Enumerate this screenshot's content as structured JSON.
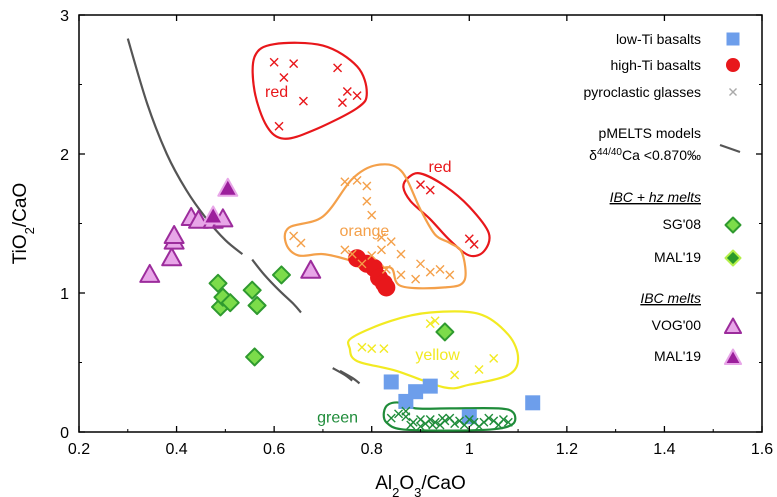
{
  "chart_data": {
    "type": "scatter",
    "xlabel_parts": [
      "Al",
      "2",
      "O",
      "3",
      "/CaO"
    ],
    "ylabel_parts": [
      "TiO",
      "2",
      "/CaO"
    ],
    "xlim": [
      0.2,
      1.6
    ],
    "ylim": [
      0,
      3
    ],
    "xticks": [
      "0.2",
      "0.4",
      "0.6",
      "0.8",
      "1",
      "1.2",
      "1.4",
      "1.6"
    ],
    "yticks": [
      "0",
      "1",
      "2",
      "3"
    ],
    "colors": {
      "low_ti": "#6d9eeb",
      "high_ti": "#e8171b",
      "glass_red": "#e8171b",
      "glass_orange": "#f4a04a",
      "glass_yellow": "#f2ea22",
      "glass_green": "#1f8c3a",
      "pmelts": "#555555",
      "sg08_fill": "#7cdc4a",
      "sg08_edge": "#2f9a2f",
      "mal19_hz_fill": "#2a9a2a",
      "mal19_hz_edge": "#b4f04a",
      "vog00_fill": "#e8a6e8",
      "vog00_edge": "#9c2c9c",
      "mal19_ibc_fill": "#9c1f9c",
      "mal19_ibc_edge": "#e8a6e8"
    },
    "series": [
      {
        "name": "low-Ti basalts",
        "marker": "square",
        "color": "#6d9eeb",
        "points": [
          [
            0.84,
            0.36
          ],
          [
            0.87,
            0.22
          ],
          [
            0.89,
            0.29
          ],
          [
            0.92,
            0.33
          ],
          [
            1.0,
            0.11
          ],
          [
            1.13,
            0.21
          ]
        ]
      },
      {
        "name": "high-Ti basalts",
        "marker": "circle",
        "color": "#e8171b",
        "points": [
          [
            0.77,
            1.25
          ],
          [
            0.79,
            1.21
          ],
          [
            0.805,
            1.18
          ],
          [
            0.815,
            1.11
          ],
          [
            0.825,
            1.07
          ],
          [
            0.83,
            1.04
          ]
        ]
      },
      {
        "name": "pyroclastic glasses",
        "marker": "x",
        "group": "red",
        "points": [
          [
            0.6,
            2.66
          ],
          [
            0.61,
            2.2
          ],
          [
            0.64,
            2.65
          ],
          [
            0.66,
            2.38
          ],
          [
            0.62,
            2.55
          ],
          [
            0.73,
            2.62
          ],
          [
            0.74,
            2.37
          ],
          [
            0.75,
            2.45
          ],
          [
            0.77,
            2.42
          ],
          [
            0.9,
            1.78
          ],
          [
            0.92,
            1.74
          ],
          [
            1.0,
            1.39
          ],
          [
            1.01,
            1.35
          ]
        ]
      },
      {
        "name": "pyroclastic glasses",
        "marker": "x",
        "group": "orange",
        "points": [
          [
            0.64,
            1.41
          ],
          [
            0.655,
            1.36
          ],
          [
            0.745,
            1.31
          ],
          [
            0.76,
            1.28
          ],
          [
            0.78,
            1.21
          ],
          [
            0.8,
            1.27
          ],
          [
            0.82,
            1.31
          ],
          [
            0.86,
            1.28
          ],
          [
            0.745,
            1.8
          ],
          [
            0.77,
            1.81
          ],
          [
            0.79,
            1.77
          ],
          [
            0.79,
            1.66
          ],
          [
            0.8,
            1.56
          ],
          [
            0.82,
            1.4
          ],
          [
            0.84,
            1.37
          ],
          [
            0.83,
            1.17
          ],
          [
            0.86,
            1.13
          ],
          [
            0.9,
            1.21
          ],
          [
            0.89,
            1.1
          ],
          [
            0.92,
            1.15
          ],
          [
            0.94,
            1.17
          ],
          [
            0.96,
            1.13
          ]
        ]
      },
      {
        "name": "pyroclastic glasses",
        "marker": "x",
        "group": "yellow",
        "points": [
          [
            0.78,
            0.61
          ],
          [
            0.8,
            0.6
          ],
          [
            0.825,
            0.6
          ],
          [
            0.92,
            0.78
          ],
          [
            0.93,
            0.8
          ],
          [
            0.97,
            0.41
          ],
          [
            1.02,
            0.45
          ],
          [
            1.05,
            0.53
          ]
        ]
      },
      {
        "name": "pyroclastic glasses",
        "marker": "x",
        "group": "green",
        "points": [
          [
            0.84,
            0.1
          ],
          [
            0.855,
            0.13
          ],
          [
            0.87,
            0.11
          ],
          [
            0.885,
            0.07
          ],
          [
            0.9,
            0.04
          ],
          [
            0.91,
            0.06
          ],
          [
            0.92,
            0.09
          ],
          [
            0.93,
            0.07
          ],
          [
            0.94,
            0.05
          ],
          [
            0.95,
            0.08
          ],
          [
            0.96,
            0.1
          ],
          [
            0.97,
            0.06
          ],
          [
            0.98,
            0.08
          ],
          [
            0.99,
            0.05
          ],
          [
            1.0,
            0.09
          ],
          [
            1.01,
            0.07
          ],
          [
            1.02,
            0.04
          ],
          [
            1.03,
            0.07
          ],
          [
            1.04,
            0.1
          ],
          [
            1.05,
            0.08
          ],
          [
            1.06,
            0.05
          ],
          [
            1.07,
            0.09
          ],
          [
            1.08,
            0.07
          ],
          [
            0.9,
            0.09
          ],
          [
            0.925,
            0.05
          ],
          [
            0.945,
            0.1
          ],
          [
            0.88,
            0.05
          ],
          [
            0.87,
            0.15
          ]
        ]
      },
      {
        "name": "SG'08",
        "marker": "diamond",
        "points": [
          [
            0.485,
            1.07
          ],
          [
            0.49,
            0.9
          ],
          [
            0.495,
            0.97
          ],
          [
            0.51,
            0.93
          ],
          [
            0.555,
            1.02
          ],
          [
            0.565,
            0.91
          ],
          [
            0.56,
            0.54
          ],
          [
            0.615,
            1.13
          ],
          [
            0.95,
            0.72
          ]
        ]
      },
      {
        "name": "VOG'00",
        "marker": "triangle",
        "points": [
          [
            0.345,
            1.13
          ],
          [
            0.39,
            1.25
          ],
          [
            0.395,
            1.37
          ],
          [
            0.395,
            1.41
          ],
          [
            0.43,
            1.54
          ],
          [
            0.445,
            1.52
          ],
          [
            0.475,
            1.52
          ],
          [
            0.495,
            1.53
          ],
          [
            0.675,
            1.16
          ]
        ]
      },
      {
        "name": "MAL'19",
        "marker": "triangle-dark",
        "points": [
          [
            0.475,
            1.55
          ],
          [
            0.505,
            1.75
          ]
        ]
      }
    ],
    "pmelts_curves": [
      [
        [
          0.3,
          2.83
        ],
        [
          0.33,
          2.43
        ],
        [
          0.37,
          2.09
        ],
        [
          0.41,
          1.81
        ],
        [
          0.45,
          1.59
        ],
        [
          0.49,
          1.43
        ],
        [
          0.53,
          1.29
        ]
      ],
      [
        [
          0.53,
          1.3
        ],
        [
          0.56,
          1.22
        ],
        [
          0.6,
          1.13
        ],
        [
          0.63,
          1.06
        ],
        [
          0.67,
          0.98
        ],
        [
          0.71,
          0.88
        ],
        [
          0.75,
          0.74
        ]
      ],
      [
        [
          0.53,
          1.25
        ],
        [
          0.56,
          1.16
        ],
        [
          0.6,
          1.03
        ],
        [
          0.635,
          0.94
        ],
        [
          0.67,
          0.83
        ],
        [
          0.72,
          0.64
        ]
      ],
      [
        [
          0.345,
          1.35
        ],
        [
          0.37,
          1.22
        ],
        [
          0.41,
          1.11
        ],
        [
          0.45,
          1.03
        ],
        [
          0.5,
          0.97
        ],
        [
          0.55,
          0.91
        ],
        [
          0.6,
          0.84
        ],
        [
          0.65,
          0.76
        ],
        [
          0.7,
          0.63
        ],
        [
          0.735,
          0.48
        ],
        [
          0.755,
          0.39
        ]
      ]
    ],
    "pmelts_partial_curves": [
      [
        [
          0.295,
          2.83
        ],
        [
          0.33,
          2.42
        ],
        [
          0.37,
          2.08
        ],
        [
          0.41,
          1.79
        ],
        [
          0.46,
          1.55
        ],
        [
          0.5,
          1.42
        ],
        [
          0.525,
          1.34
        ]
      ],
      [
        [
          0.53,
          1.24
        ],
        [
          0.56,
          1.13
        ],
        [
          0.6,
          1.0
        ],
        [
          0.64,
          0.89
        ],
        [
          0.66,
          0.82
        ]
      ],
      [
        [
          0.715,
          0.47
        ],
        [
          0.735,
          0.42
        ],
        [
          0.75,
          0.37
        ]
      ],
      [
        [
          0.74,
          0.44
        ],
        [
          0.76,
          0.39
        ],
        [
          0.77,
          0.36
        ]
      ]
    ],
    "regions": [
      {
        "label": "red",
        "color": "#e8171b",
        "outline": [
          [
            0.56,
            2.7
          ],
          [
            0.6,
            2.79
          ],
          [
            0.7,
            2.78
          ],
          [
            0.77,
            2.63
          ],
          [
            0.79,
            2.44
          ],
          [
            0.77,
            2.33
          ],
          [
            0.68,
            2.17
          ],
          [
            0.62,
            2.11
          ],
          [
            0.585,
            2.2
          ],
          [
            0.56,
            2.45
          ]
        ],
        "label_at": [
          0.605,
          2.44
        ]
      },
      {
        "label": "red",
        "color": "#e8171b",
        "outline": [
          [
            0.875,
            1.83
          ],
          [
            0.9,
            1.86
          ],
          [
            0.95,
            1.77
          ],
          [
            1.0,
            1.62
          ],
          [
            1.04,
            1.43
          ],
          [
            1.03,
            1.3
          ],
          [
            1.0,
            1.27
          ],
          [
            0.96,
            1.38
          ],
          [
            0.92,
            1.53
          ],
          [
            0.88,
            1.66
          ],
          [
            0.865,
            1.76
          ]
        ],
        "label_at": [
          0.94,
          1.9
        ]
      },
      {
        "label": "orange",
        "color": "#f4a04a",
        "outline": [
          [
            0.63,
            1.47
          ],
          [
            0.7,
            1.55
          ],
          [
            0.76,
            1.82
          ],
          [
            0.81,
            1.92
          ],
          [
            0.86,
            1.88
          ],
          [
            0.9,
            1.6
          ],
          [
            0.93,
            1.42
          ],
          [
            0.96,
            1.36
          ],
          [
            0.985,
            1.29
          ],
          [
            0.99,
            1.09
          ],
          [
            0.95,
            1.04
          ],
          [
            0.86,
            1.05
          ],
          [
            0.84,
            1.18
          ],
          [
            0.8,
            1.17
          ],
          [
            0.75,
            1.24
          ],
          [
            0.7,
            1.28
          ],
          [
            0.65,
            1.27
          ],
          [
            0.625,
            1.35
          ]
        ],
        "label_at": [
          0.785,
          1.44
        ]
      },
      {
        "label": "yellow",
        "color": "#f2ea22",
        "outline": [
          [
            0.76,
            0.68
          ],
          [
            0.84,
            0.8
          ],
          [
            0.92,
            0.86
          ],
          [
            1.02,
            0.85
          ],
          [
            1.08,
            0.7
          ],
          [
            1.1,
            0.53
          ],
          [
            1.08,
            0.41
          ],
          [
            1.0,
            0.34
          ],
          [
            0.95,
            0.32
          ],
          [
            0.85,
            0.44
          ],
          [
            0.77,
            0.51
          ],
          [
            0.755,
            0.6
          ]
        ],
        "label_at": [
          0.935,
          0.55
        ]
      },
      {
        "label": "green",
        "color": "#1f8c3a",
        "outline": [
          [
            0.835,
            0.2
          ],
          [
            0.86,
            0.21
          ],
          [
            0.89,
            0.17
          ],
          [
            0.96,
            0.17
          ],
          [
            1.06,
            0.17
          ],
          [
            1.09,
            0.14
          ],
          [
            1.09,
            0.06
          ],
          [
            1.05,
            0.02
          ],
          [
            0.95,
            0.01
          ],
          [
            0.86,
            0.02
          ],
          [
            0.83,
            0.07
          ],
          [
            0.825,
            0.14
          ]
        ],
        "label_at": [
          0.73,
          0.1
        ]
      }
    ],
    "legend": {
      "low_ti": "low-Ti basalts",
      "high_ti": "high-Ti basalts",
      "glasses": "pyroclastic glasses",
      "pmelts_line1": "pMELTS models",
      "pmelts_line2_prefix": "δ",
      "pmelts_line2_sup": "44/40",
      "pmelts_line2_suffix": "Ca <0.870‰",
      "ibc_hz_head": "IBC + hz melts",
      "sg08": "SG'08",
      "mal19_hz": "MAL'19",
      "ibc_head": "IBC melts",
      "vog00": "VOG'00",
      "mal19_ibc": "MAL'19"
    }
  }
}
